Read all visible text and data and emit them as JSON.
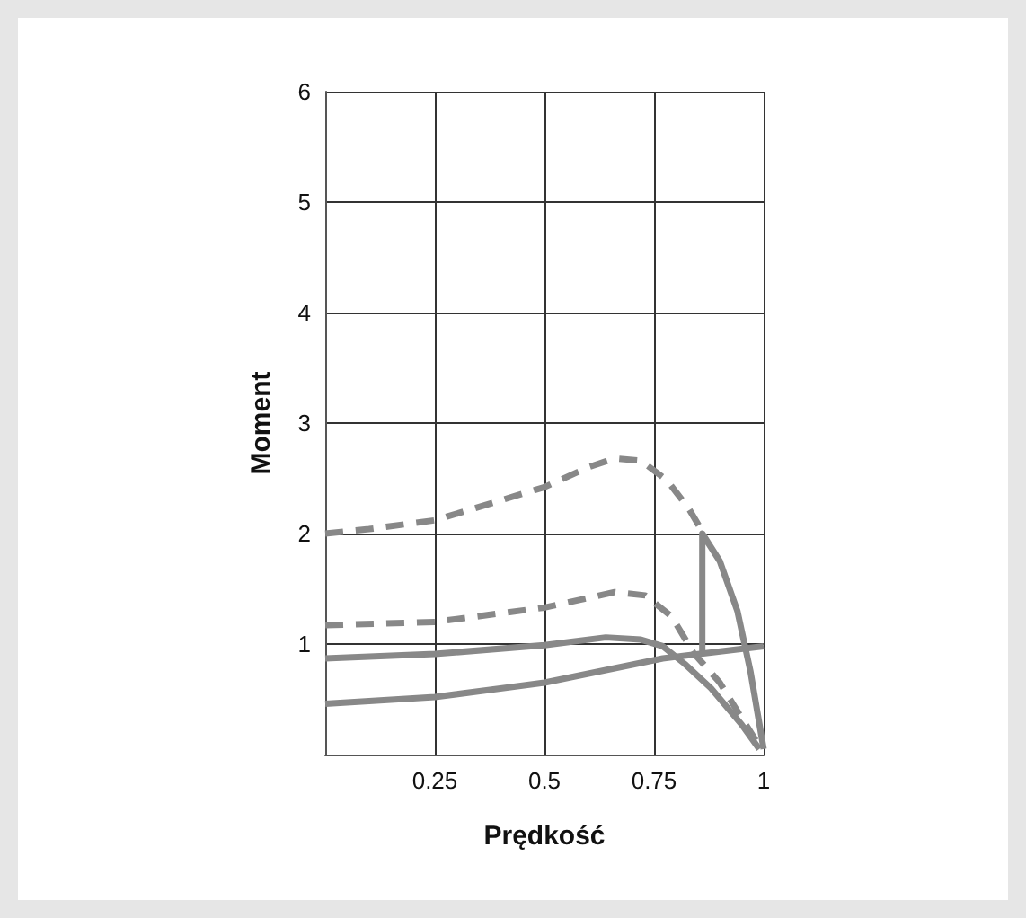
{
  "chart_data": {
    "type": "line",
    "xlabel": "Prędkość",
    "ylabel": "Moment",
    "xlim": [
      0,
      1
    ],
    "ylim": [
      0,
      6
    ],
    "xticks": [
      0.25,
      0.5,
      0.75,
      1
    ],
    "yticks": [
      {
        "value": 0,
        "label": null
      },
      1,
      2,
      3,
      4,
      5,
      6
    ],
    "grid": true,
    "marker": "none",
    "series": [
      {
        "color": "#888888",
        "line_style": "dashed",
        "x": [
          0,
          0.1,
          0.25,
          0.4,
          0.5,
          0.6,
          0.66,
          0.72,
          0.78,
          0.83,
          0.86
        ],
        "values": [
          2.0,
          2.04,
          2.12,
          2.3,
          2.42,
          2.6,
          2.68,
          2.66,
          2.48,
          2.22,
          2.02
        ]
      },
      {
        "color": "#888888",
        "line_style": "solid",
        "x": [
          0.86,
          0.86,
          0.9,
          0.94,
          0.97,
          1
        ],
        "values": [
          0.92,
          2.0,
          1.75,
          1.3,
          0.75,
          0.05
        ]
      },
      {
        "color": "#888888",
        "line_style": "dashed",
        "x": [
          0,
          0.25,
          0.5,
          0.66,
          0.73,
          0.79,
          0.84,
          0.9,
          0.95,
          0.99
        ],
        "values": [
          1.17,
          1.2,
          1.33,
          1.47,
          1.44,
          1.25,
          0.92,
          0.65,
          0.33,
          0.08
        ]
      },
      {
        "color": "#888888",
        "line_style": "solid",
        "x": [
          0,
          0.25,
          0.5,
          0.64,
          0.72,
          0.77,
          0.82,
          0.88,
          0.95,
          0.99
        ],
        "values": [
          0.87,
          0.91,
          0.99,
          1.06,
          1.04,
          0.98,
          0.82,
          0.6,
          0.27,
          0.05
        ]
      },
      {
        "color": "#888888",
        "line_style": "solid",
        "x": [
          0,
          0.25,
          0.5,
          0.77,
          1
        ],
        "values": [
          0.46,
          0.52,
          0.65,
          0.87,
          0.98
        ]
      }
    ]
  }
}
